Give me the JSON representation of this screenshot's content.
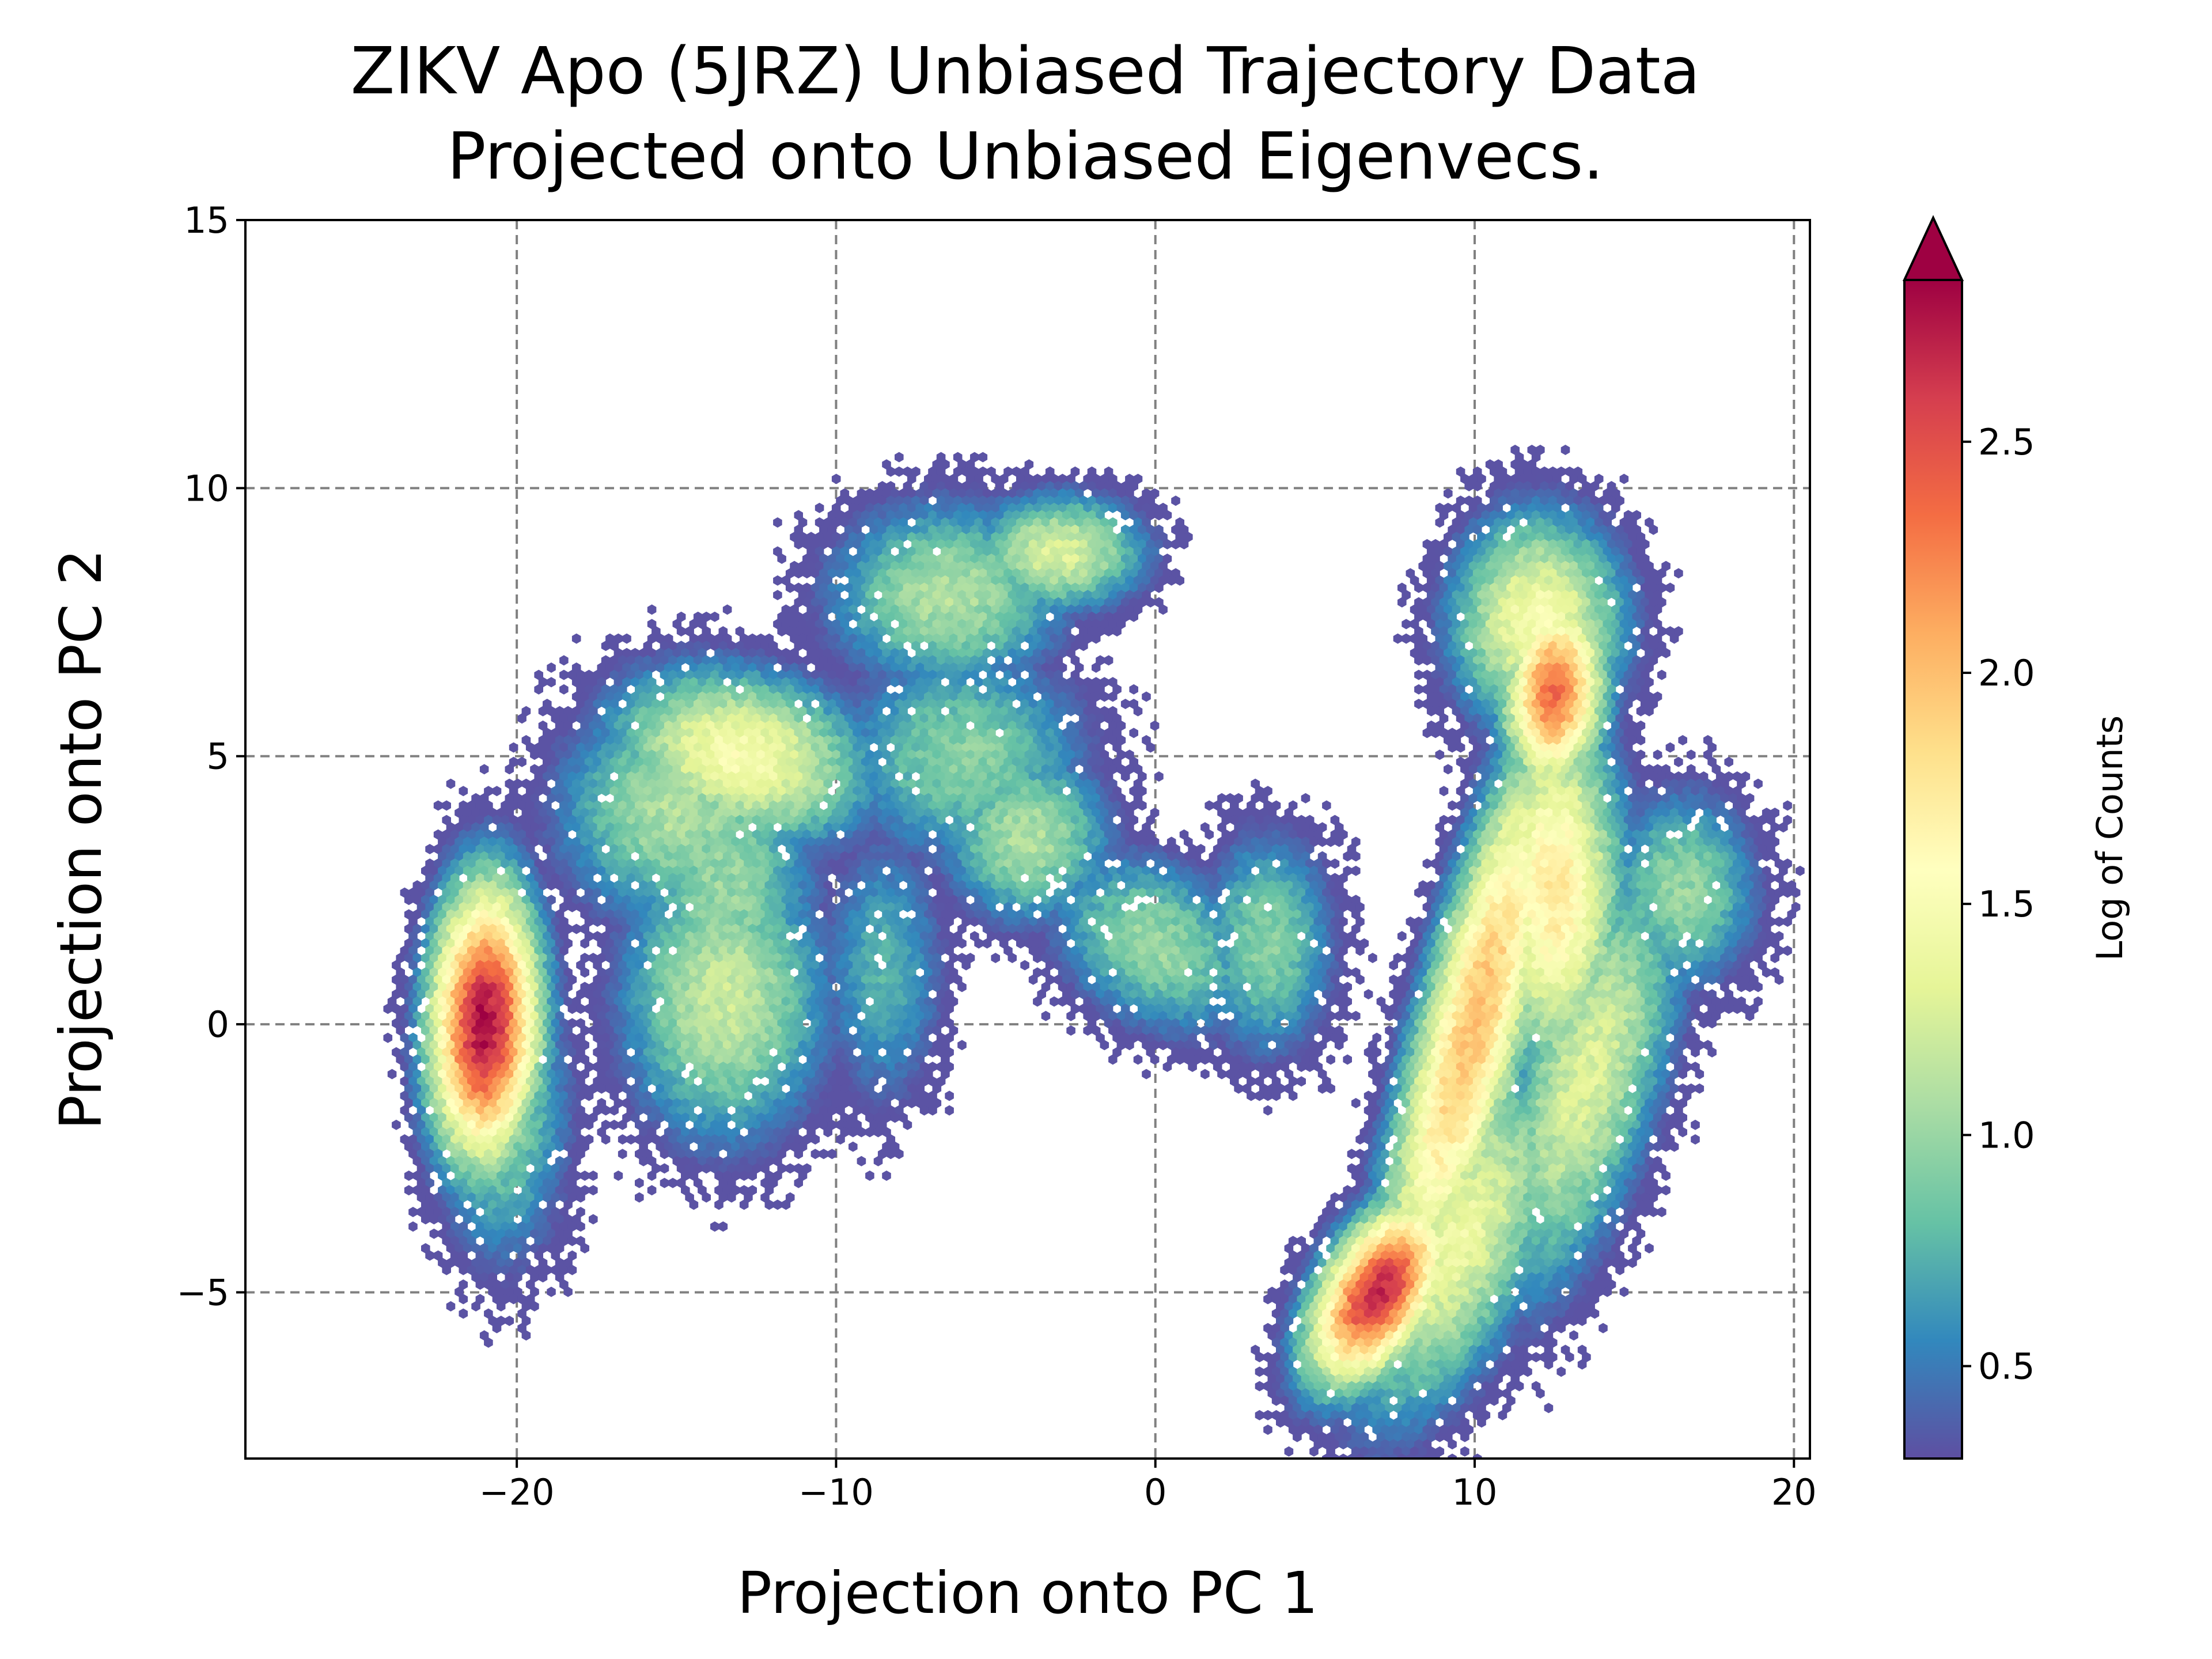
{
  "chart_data": {
    "type": "heatmap",
    "subtype": "hexbin",
    "title": [
      "ZIKV Apo (5JRZ) Unbiased Trajectory Data",
      "Projected onto Unbiased Eigenvecs."
    ],
    "xlabel": "Projection onto PC 1",
    "ylabel": "Projection onto PC 2",
    "xlim": [
      -28.5,
      20.5
    ],
    "ylim": [
      -8.1,
      15
    ],
    "xticks": [
      -20,
      -10,
      0,
      10,
      20
    ],
    "xtick_labels": [
      "−20",
      "−10",
      "0",
      "10",
      "20"
    ],
    "yticks": [
      -5,
      0,
      5,
      10,
      15
    ],
    "ytick_labels": [
      "−5",
      "0",
      "5",
      "10",
      "15"
    ],
    "grid": true,
    "colorbar": {
      "label": "Log of Counts",
      "colormap": "Spectral_r",
      "range": [
        0.3,
        2.85
      ],
      "extend": "max",
      "ticks": [
        0.5,
        1.0,
        1.5,
        2.0,
        2.5
      ],
      "tick_labels": [
        "0.5",
        "1.0",
        "1.5",
        "2.0",
        "2.5"
      ]
    },
    "density_peaks": [
      {
        "x": -21.0,
        "y": 0.0,
        "log_count": 2.8
      },
      {
        "x": 7.0,
        "y": -5.0,
        "log_count": 2.7
      },
      {
        "x": 12.5,
        "y": 6.2,
        "log_count": 2.35
      },
      {
        "x": 10.0,
        "y": 0.0,
        "log_count": 2.0
      },
      {
        "x": -13.0,
        "y": 5.0,
        "log_count": 1.5
      },
      {
        "x": -3.0,
        "y": 8.8,
        "log_count": 1.3
      },
      {
        "x": -14.0,
        "y": 0.5,
        "log_count": 1.2
      },
      {
        "x": -4.0,
        "y": 3.5,
        "log_count": 1.1
      }
    ]
  }
}
